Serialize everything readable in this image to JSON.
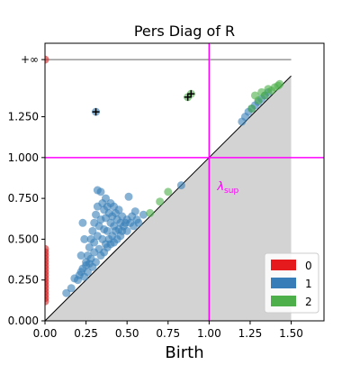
{
  "chart_data": {
    "type": "scatter",
    "title": "Pers Diag of R",
    "xlabel": "Birth",
    "ylabel": "",
    "xlim": [
      0,
      1.7
    ],
    "ylim": [
      0,
      1.7
    ],
    "xticks": [
      {
        "value": 0.0,
        "label": "0.00"
      },
      {
        "value": 0.25,
        "label": "0.25"
      },
      {
        "value": 0.5,
        "label": "0.50"
      },
      {
        "value": 0.75,
        "label": "0.75"
      },
      {
        "value": 1.0,
        "label": "1.00"
      },
      {
        "value": 1.25,
        "label": "1.25"
      },
      {
        "value": 1.5,
        "label": "1.50"
      }
    ],
    "yticks": [
      {
        "value": 0.0,
        "label": "0.000"
      },
      {
        "value": 0.25,
        "label": "0.250"
      },
      {
        "value": 0.5,
        "label": "0.500"
      },
      {
        "value": 0.75,
        "label": "0.750"
      },
      {
        "value": 1.0,
        "label": "1.000"
      },
      {
        "value": 1.25,
        "label": "1.250"
      },
      {
        "value": 1.6,
        "label": "+∞"
      }
    ],
    "infinity_value": 1.6,
    "diagonal_max": 1.5,
    "lambda_sup": 1.0,
    "lambda_label": "λsup",
    "lambda_label_main": "λ",
    "lambda_label_sub": "sup",
    "colors": {
      "dim0": "#e41a1c",
      "dim1": "#377eb8",
      "dim2": "#4daf4a",
      "lambda": "#ff00ff",
      "shade": "#d3d3d3",
      "infinity_line": "#666666"
    },
    "grid": false,
    "legend_position": "lower-right",
    "series": [
      {
        "name": "0",
        "points": [
          [
            0,
            0.12
          ],
          [
            0,
            0.14
          ],
          [
            0,
            0.16
          ],
          [
            0,
            0.18
          ],
          [
            0,
            0.2
          ],
          [
            0,
            0.22
          ],
          [
            0,
            0.24
          ],
          [
            0,
            0.26
          ],
          [
            0,
            0.28
          ],
          [
            0,
            0.3
          ],
          [
            0,
            0.32
          ],
          [
            0,
            0.34
          ],
          [
            0,
            0.36
          ],
          [
            0,
            0.38
          ],
          [
            0,
            0.4
          ],
          [
            0,
            0.42
          ],
          [
            0,
            0.44
          ],
          [
            0,
            1.6
          ]
        ]
      },
      {
        "name": "1",
        "points": [
          [
            0.31,
            1.28
          ],
          [
            0.13,
            0.17
          ],
          [
            0.16,
            0.2
          ],
          [
            0.18,
            0.26
          ],
          [
            0.2,
            0.25
          ],
          [
            0.21,
            0.28
          ],
          [
            0.22,
            0.3
          ],
          [
            0.23,
            0.32
          ],
          [
            0.24,
            0.27
          ],
          [
            0.25,
            0.34
          ],
          [
            0.25,
            0.36
          ],
          [
            0.26,
            0.4
          ],
          [
            0.26,
            0.3
          ],
          [
            0.27,
            0.45
          ],
          [
            0.27,
            0.35
          ],
          [
            0.28,
            0.5
          ],
          [
            0.28,
            0.38
          ],
          [
            0.29,
            0.55
          ],
          [
            0.29,
            0.33
          ],
          [
            0.3,
            0.6
          ],
          [
            0.3,
            0.42
          ],
          [
            0.3,
            0.48
          ],
          [
            0.31,
            0.65
          ],
          [
            0.31,
            0.36
          ],
          [
            0.32,
            0.8
          ],
          [
            0.32,
            0.7
          ],
          [
            0.32,
            0.52
          ],
          [
            0.33,
            0.58
          ],
          [
            0.33,
            0.44
          ],
          [
            0.34,
            0.79
          ],
          [
            0.34,
            0.62
          ],
          [
            0.34,
            0.4
          ],
          [
            0.35,
            0.72
          ],
          [
            0.35,
            0.5
          ],
          [
            0.36,
            0.68
          ],
          [
            0.36,
            0.56
          ],
          [
            0.36,
            0.42
          ],
          [
            0.37,
            0.75
          ],
          [
            0.37,
            0.63
          ],
          [
            0.37,
            0.47
          ],
          [
            0.38,
            0.7
          ],
          [
            0.38,
            0.55
          ],
          [
            0.38,
            0.45
          ],
          [
            0.39,
            0.66
          ],
          [
            0.39,
            0.5
          ],
          [
            0.4,
            0.72
          ],
          [
            0.4,
            0.6
          ],
          [
            0.4,
            0.47
          ],
          [
            0.41,
            0.64
          ],
          [
            0.41,
            0.52
          ],
          [
            0.42,
            0.7
          ],
          [
            0.42,
            0.58
          ],
          [
            0.42,
            0.48
          ],
          [
            0.43,
            0.66
          ],
          [
            0.43,
            0.55
          ],
          [
            0.44,
            0.62
          ],
          [
            0.44,
            0.5
          ],
          [
            0.45,
            0.68
          ],
          [
            0.45,
            0.56
          ],
          [
            0.46,
            0.6
          ],
          [
            0.46,
            0.52
          ],
          [
            0.47,
            0.64
          ],
          [
            0.47,
            0.55
          ],
          [
            0.48,
            0.58
          ],
          [
            0.49,
            0.6
          ],
          [
            0.5,
            0.62
          ],
          [
            0.5,
            0.55
          ],
          [
            0.51,
            0.76
          ],
          [
            0.52,
            0.6
          ],
          [
            0.53,
            0.64
          ],
          [
            0.54,
            0.58
          ],
          [
            0.55,
            0.67
          ],
          [
            0.56,
            0.62
          ],
          [
            0.57,
            0.6
          ],
          [
            0.6,
            0.65
          ],
          [
            0.83,
            0.83
          ],
          [
            0.23,
            0.6
          ],
          [
            0.24,
            0.5
          ],
          [
            0.22,
            0.4
          ],
          [
            1.2,
            1.22
          ],
          [
            1.22,
            1.25
          ],
          [
            1.24,
            1.28
          ],
          [
            1.26,
            1.3
          ],
          [
            1.28,
            1.32
          ],
          [
            1.3,
            1.34
          ],
          [
            1.32,
            1.36
          ],
          [
            1.34,
            1.38
          ],
          [
            1.36,
            1.4
          ]
        ]
      },
      {
        "name": "2",
        "points": [
          [
            0.87,
            1.37
          ],
          [
            0.89,
            1.39
          ],
          [
            0.64,
            0.66
          ],
          [
            0.7,
            0.73
          ],
          [
            0.75,
            0.79
          ],
          [
            1.26,
            1.3
          ],
          [
            1.28,
            1.38
          ],
          [
            1.3,
            1.35
          ],
          [
            1.32,
            1.4
          ],
          [
            1.34,
            1.38
          ],
          [
            1.36,
            1.42
          ],
          [
            1.38,
            1.41
          ],
          [
            1.4,
            1.43
          ],
          [
            1.42,
            1.44
          ],
          [
            1.43,
            1.45
          ]
        ]
      }
    ]
  }
}
